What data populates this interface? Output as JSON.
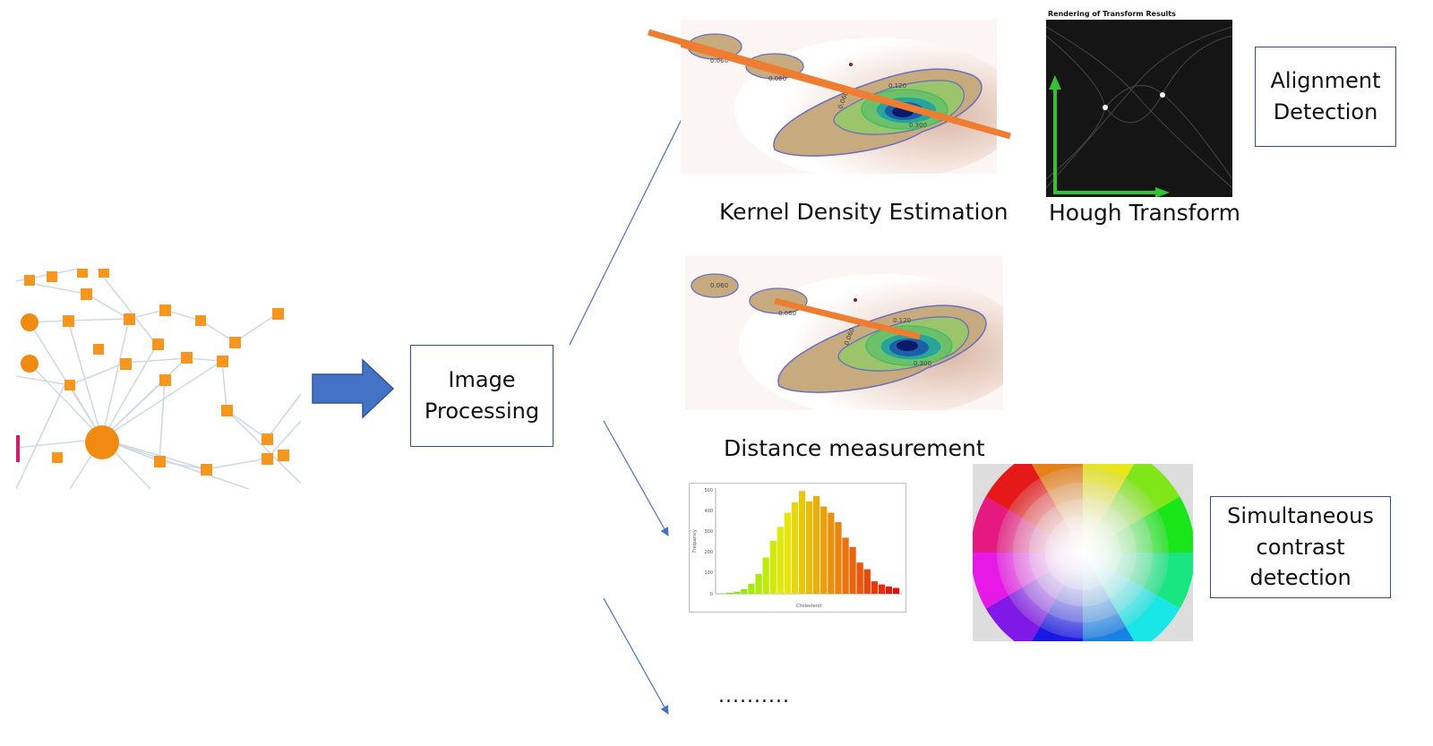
{
  "process_box": {
    "label": "Image\nProcessing"
  },
  "captions": {
    "kde": "Kernel Density Estimation",
    "hough": "Hough Transform",
    "distance": "Distance measurement",
    "ellipsis": ".........."
  },
  "boxes": {
    "alignment": "Alignment\nDetection",
    "contrast": "Simultaneous\ncontrast\ndetection"
  },
  "hough_panel": {
    "title": "Rendering of Transform Results"
  },
  "kde_contours": {
    "labels": [
      "0.060",
      "0.060",
      "0.060",
      "0.120",
      "0.300",
      "0.060",
      "0.060",
      "0.060",
      "0.120",
      "0.300"
    ]
  },
  "histogram": {
    "ylabel": "Frequency",
    "xlabel": "Cholesterol",
    "yticks": [
      "500",
      "400",
      "300",
      "200",
      "100",
      "0"
    ],
    "values": [
      2,
      5,
      10,
      22,
      48,
      95,
      175,
      255,
      322,
      390,
      440,
      495,
      445,
      470,
      420,
      390,
      345,
      270,
      225,
      150,
      118,
      60,
      45,
      35,
      28
    ]
  },
  "colors": {
    "arrow_blue": "#4472c4",
    "orange": "#ee7d31",
    "box_border": "#2f4f8f"
  }
}
